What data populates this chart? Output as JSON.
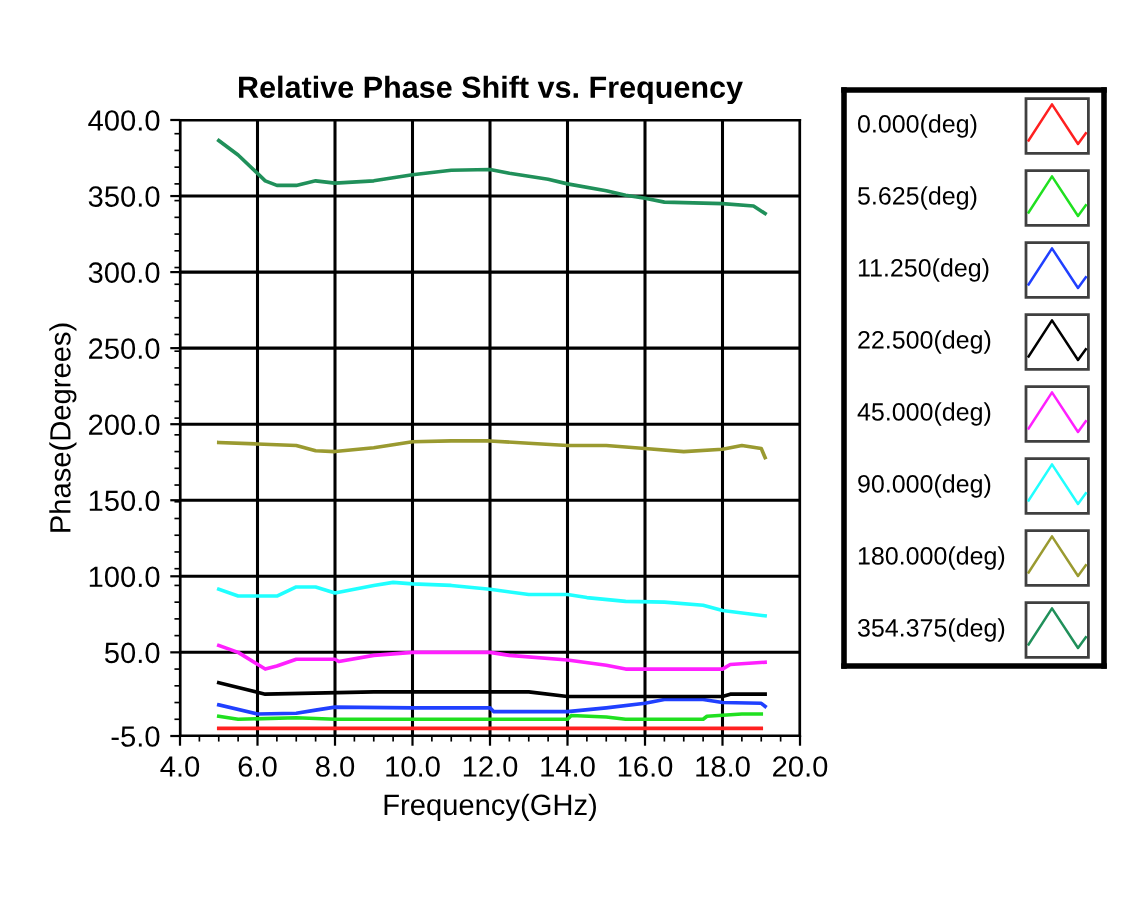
{
  "chart_data": {
    "type": "line",
    "title": "Relative Phase Shift vs. Frequency",
    "xlabel": "Frequency(GHz)",
    "ylabel": "Phase(Degrees)",
    "xlim": [
      4,
      20
    ],
    "xticks": [
      {
        "value": 4,
        "label": "4.0"
      },
      {
        "value": 6,
        "label": "6.0"
      },
      {
        "value": 8,
        "label": "8.0"
      },
      {
        "value": 10,
        "label": "10.0"
      },
      {
        "value": 12,
        "label": "12.0"
      },
      {
        "value": 14,
        "label": "14.0"
      },
      {
        "value": 16,
        "label": "16.0"
      },
      {
        "value": 18,
        "label": "18.0"
      },
      {
        "value": 20,
        "label": "20.0"
      }
    ],
    "ylim": [
      -5,
      400
    ],
    "yticks": [
      {
        "value": -5,
        "label": "-5.0"
      },
      {
        "value": 50,
        "label": "50.0"
      },
      {
        "value": 100,
        "label": "100.0"
      },
      {
        "value": 150,
        "label": "150.0"
      },
      {
        "value": 200,
        "label": "200.0"
      },
      {
        "value": 250,
        "label": "250.0"
      },
      {
        "value": 300,
        "label": "300.0"
      },
      {
        "value": 350,
        "label": "350.0"
      },
      {
        "value": 400,
        "label": "400.0"
      }
    ],
    "grid": true,
    "legend": "right",
    "marker": "none",
    "line_style": "solid",
    "series": [
      {
        "name": "0.000(deg)",
        "color": "#ff2020",
        "x": [
          5,
          19
        ],
        "values": [
          0,
          0
        ]
      },
      {
        "name": "5.625(deg)",
        "color": "#20e020",
        "x": [
          5,
          5.5,
          7,
          8,
          14,
          14.1,
          15,
          15.5,
          17.5,
          17.6,
          18.5,
          19
        ],
        "values": [
          8,
          6,
          7,
          6,
          6,
          8.5,
          7.5,
          6,
          6,
          8,
          9.5,
          9.5
        ]
      },
      {
        "name": "11.250(deg)",
        "color": "#2040ff",
        "x": [
          5,
          6,
          7,
          7.5,
          8,
          10,
          12,
          12.1,
          14,
          15,
          16,
          16.5,
          17.5,
          18,
          19,
          19.1
        ],
        "values": [
          15.5,
          9.5,
          10,
          12,
          14,
          13.5,
          13.5,
          11,
          11,
          13.5,
          16.5,
          19,
          19,
          17,
          16.5,
          14.5
        ]
      },
      {
        "name": "22.500(deg)",
        "color": "#000000",
        "x": [
          5,
          6.2,
          9,
          13,
          14,
          18,
          18.2,
          19.1
        ],
        "values": [
          30,
          22.5,
          24,
          24,
          21,
          21,
          22.5,
          22.5
        ]
      },
      {
        "name": "45.000(deg)",
        "color": "#ff20ff",
        "x": [
          5,
          5.5,
          6.2,
          6.5,
          7,
          8,
          8.1,
          9,
          10,
          12,
          12.5,
          14,
          15,
          15.5,
          18,
          18.2,
          19.1
        ],
        "values": [
          54.5,
          50,
          39,
          41,
          45.5,
          45.5,
          44,
          48,
          50,
          50,
          48,
          45,
          41.5,
          39,
          39,
          42,
          43.5
        ]
      },
      {
        "name": "90.000(deg)",
        "color": "#20ffff",
        "x": [
          5,
          5.5,
          6.5,
          7,
          7.5,
          8,
          9,
          9.5,
          10,
          11,
          12,
          13,
          14,
          14.5,
          15.5,
          16.5,
          17.5,
          18,
          19.1
        ],
        "values": [
          91.5,
          87,
          87,
          93,
          93,
          89,
          94,
          96,
          95,
          94,
          91.5,
          88,
          88,
          86,
          83.5,
          83,
          81,
          77.5,
          74
        ]
      },
      {
        "name": "180.000(deg)",
        "color": "#9a9a30",
        "x": [
          5,
          6,
          7,
          7.5,
          8,
          9,
          10,
          11,
          12,
          13,
          14,
          15,
          16,
          17,
          18,
          18.5,
          19,
          19.1
        ],
        "values": [
          188,
          187,
          186,
          182.5,
          182,
          184.5,
          188.5,
          189,
          189,
          187.5,
          186,
          186,
          184,
          182,
          183.5,
          186,
          184,
          178
        ]
      },
      {
        "name": "354.375(deg)",
        "color": "#20905a",
        "x": [
          5,
          5.5,
          6.2,
          6.5,
          7,
          7.5,
          8,
          9,
          9.5,
          10,
          11,
          12,
          12.5,
          13.5,
          14,
          15,
          15.5,
          16,
          16.5,
          18,
          18.8,
          19.1
        ],
        "values": [
          386.5,
          377,
          360,
          357,
          357,
          360,
          358.5,
          360,
          362,
          364,
          367,
          367.5,
          365,
          361,
          358,
          353.5,
          350.5,
          348.5,
          346,
          345,
          343.5,
          338.5
        ]
      }
    ]
  }
}
